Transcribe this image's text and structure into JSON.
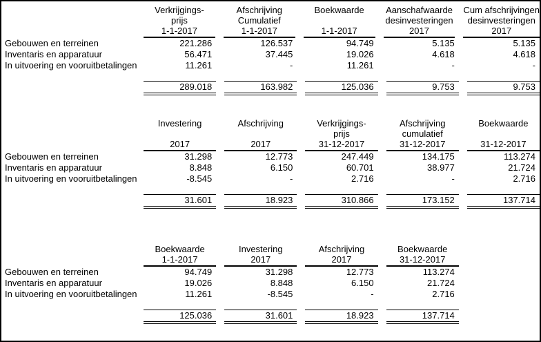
{
  "colors": {
    "text": "#000000",
    "background": "#ffffff",
    "rule": "#000000"
  },
  "tables": [
    {
      "title": "vaste-activa-beginstand-en-desinvesteringen",
      "headers": [
        {
          "l1": "Verkrijgings-",
          "l2": "prijs",
          "l3": "1-1-2017"
        },
        {
          "l1": "Afschrijving",
          "l2": "Cumulatief",
          "l3": "1-1-2017"
        },
        {
          "l1": "Boekwaarde",
          "l2": "",
          "l3": "1-1-2017"
        },
        {
          "l1": "Aanschafwaarde",
          "l2": "desinvesteringen",
          "l3": "2017"
        },
        {
          "l1": "Cum afschrijvingen",
          "l2": "desinvesteringen",
          "l3": "2017"
        }
      ],
      "rows": [
        {
          "label": "Gebouwen en terreinen",
          "v": [
            "221.286",
            "126.537",
            "94.749",
            "5.135",
            "5.135"
          ]
        },
        {
          "label": "Inventaris en apparatuur",
          "v": [
            "56.471",
            "37.445",
            "19.026",
            "4.618",
            "4.618"
          ]
        },
        {
          "label": "In uitvoering en vooruitbetalingen",
          "v": [
            "11.261",
            "-",
            "11.261",
            "-",
            "-"
          ]
        }
      ],
      "totals": [
        "289.018",
        "163.982",
        "125.036",
        "9.753",
        "9.753"
      ]
    },
    {
      "title": "mutaties-2017-en-eindstand",
      "headers": [
        {
          "l1": "Investering",
          "l2": "",
          "l3": "2017"
        },
        {
          "l1": "Afschrijving",
          "l2": "",
          "l3": "2017"
        },
        {
          "l1": "Verkrijgings-",
          "l2": "prijs",
          "l3": "31-12-2017"
        },
        {
          "l1": "Afschrijving",
          "l2": "cumulatief",
          "l3": "31-12-2017"
        },
        {
          "l1": "Boekwaarde",
          "l2": "",
          "l3": "31-12-2017"
        }
      ],
      "rows": [
        {
          "label": "Gebouwen en terreinen",
          "v": [
            "31.298",
            "12.773",
            "247.449",
            "134.175",
            "113.274"
          ]
        },
        {
          "label": "Inventaris en apparatuur",
          "v": [
            "8.848",
            "6.150",
            "60.701",
            "38.977",
            "21.724"
          ]
        },
        {
          "label": "In uitvoering en vooruitbetalingen",
          "v": [
            "-8.545",
            "-",
            "2.716",
            "-",
            "2.716"
          ]
        }
      ],
      "totals": [
        "31.601",
        "18.923",
        "310.866",
        "173.152",
        "137.714"
      ]
    },
    {
      "title": "boekwaarde-verloop",
      "headers": [
        {
          "l1": "Boekwaarde",
          "l2": "1-1-2017"
        },
        {
          "l1": "Investering",
          "l2": "2017"
        },
        {
          "l1": "Afschrijving",
          "l2": "2017"
        },
        {
          "l1": "Boekwaarde",
          "l2": "31-12-2017"
        }
      ],
      "rows": [
        {
          "label": "Gebouwen en terreinen",
          "v": [
            "94.749",
            "31.298",
            "12.773",
            "113.274"
          ]
        },
        {
          "label": "Inventaris en apparatuur",
          "v": [
            "19.026",
            "8.848",
            "6.150",
            "21.724"
          ]
        },
        {
          "label": "In uitvoering en vooruitbetalingen",
          "v": [
            "11.261",
            "-8.545",
            "-",
            "2.716"
          ]
        }
      ],
      "totals": [
        "125.036",
        "31.601",
        "18.923",
        "137.714"
      ]
    }
  ]
}
